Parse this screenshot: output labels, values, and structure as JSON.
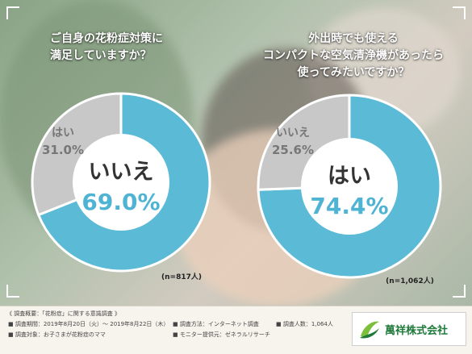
{
  "colors": {
    "primary": "#5bbad5",
    "secondary": "#c8c8c8",
    "center": "#ffffff",
    "gray_text": "#777777",
    "accent_text": "#4fb3d3",
    "brand_green": "#1e7a3a"
  },
  "chart_data": [
    {
      "type": "pie",
      "title": "ご自身の花粉症対策に満足していますか？",
      "title_lines": [
        "ご自身の花粉症対策に",
        "満足していますか？"
      ],
      "slices": [
        {
          "label": "いいえ",
          "value": 69.0,
          "value_label": "69.0%"
        },
        {
          "label": "はい",
          "value": 31.0,
          "value_label": "31.0%"
        }
      ],
      "n_label": "(n=817人)"
    },
    {
      "type": "pie",
      "title": "外出時でも使えるコンパクトな空気清浄機があったら使ってみたいですか？",
      "title_lines": [
        "外出時でも使える",
        "コンパクトな空気清浄機があったら",
        "使ってみたいですか？"
      ],
      "slices": [
        {
          "label": "はい",
          "value": 74.4,
          "value_label": "74.4%"
        },
        {
          "label": "いいえ",
          "value": 25.6,
          "value_label": "25.6%"
        }
      ],
      "n_label": "(n=1,062人)"
    }
  ],
  "footer": {
    "heading": "《 調査概要：「花粉症」に関する意識調査 》",
    "period": "■ 調査期間：2019年8月20日（火）～ 2019年8月22日（木）",
    "method": "■ 調査方法：インターネット調査",
    "count": "■ 調査人数：1,064人",
    "target": "■ 調査対象：お子さまが花粉症のママ",
    "provider": "■ モニター提供元：ゼネラルリサーチ"
  },
  "logo": {
    "name": "萬祥株式会社",
    "icon": "leaf-swoosh-icon"
  }
}
